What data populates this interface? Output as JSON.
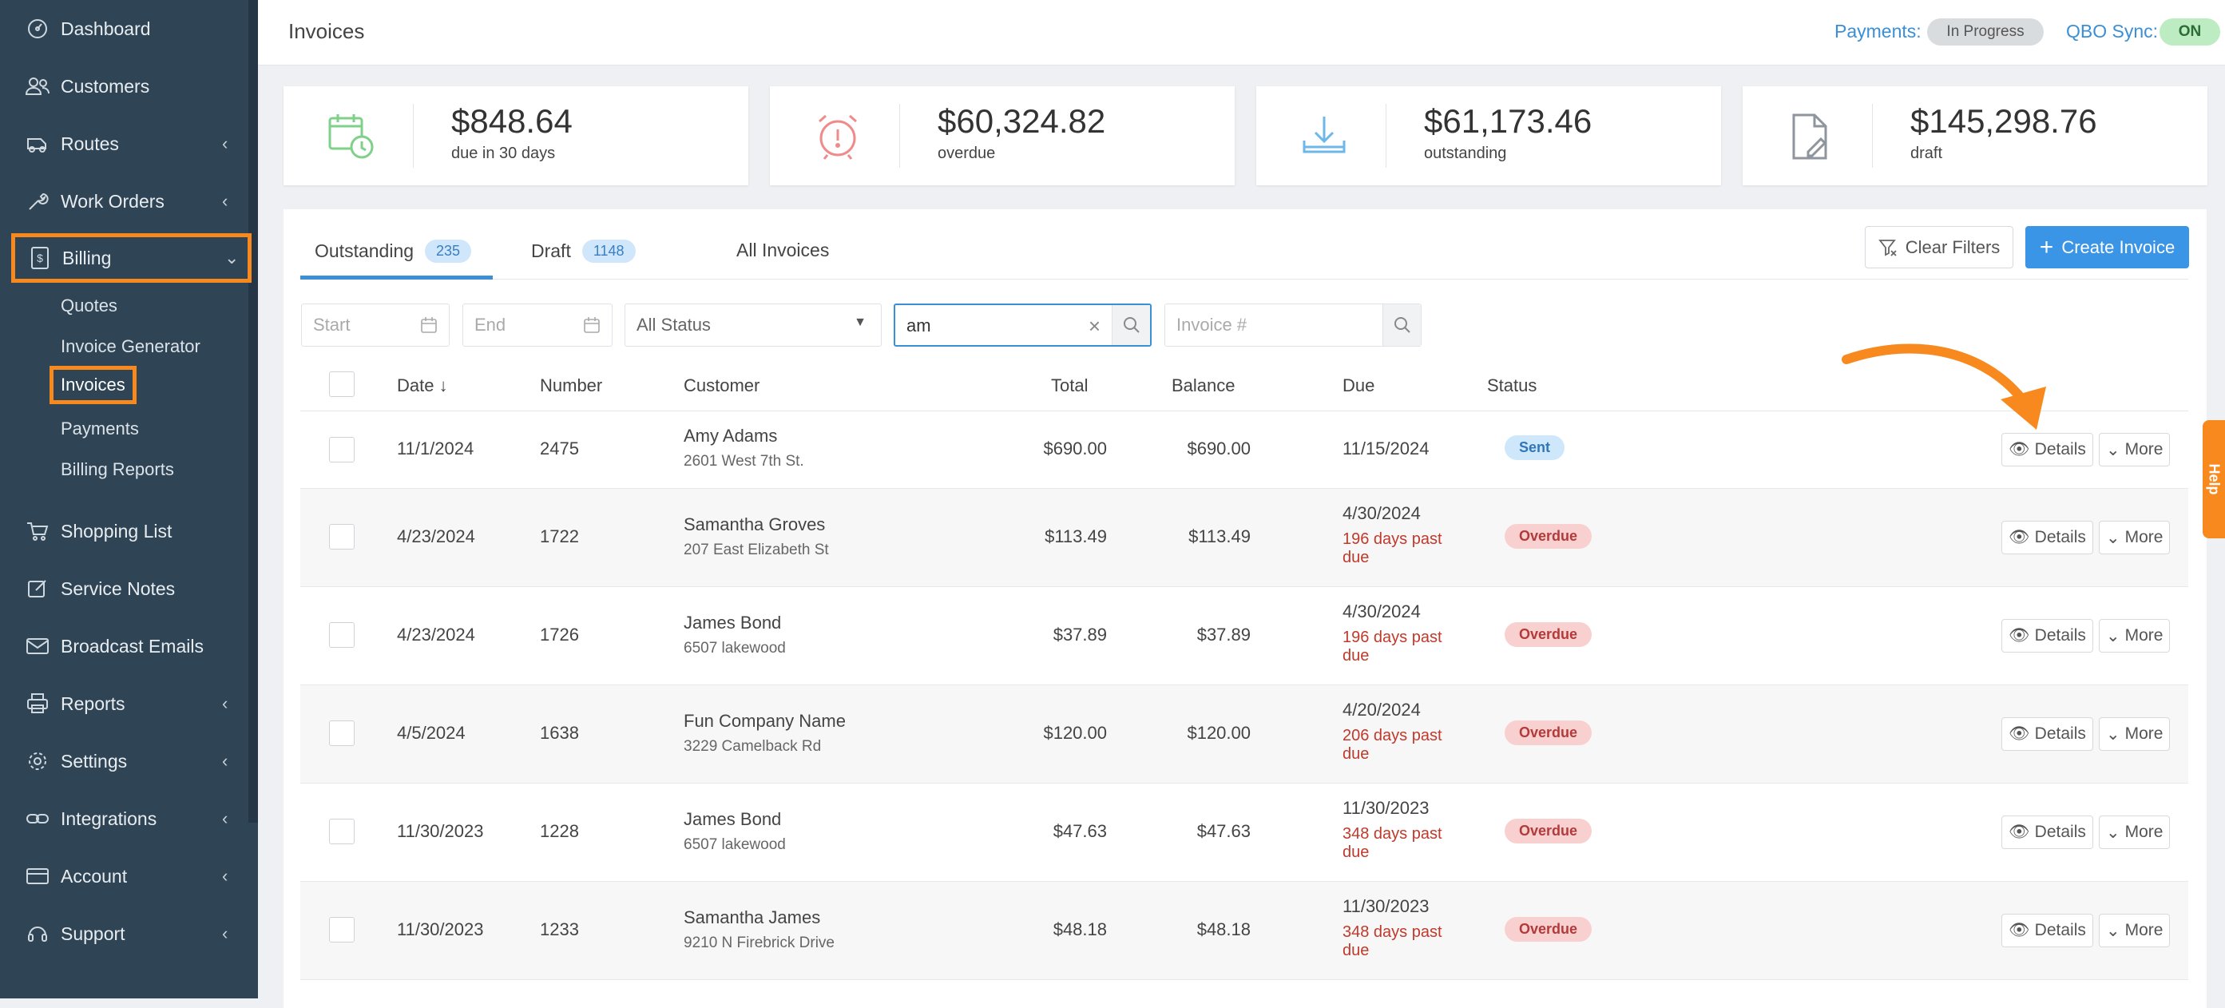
{
  "sidebar": {
    "items": [
      {
        "label": "Dashboard",
        "icon": "dashboard-icon"
      },
      {
        "label": "Customers",
        "icon": "customers-icon"
      },
      {
        "label": "Routes",
        "icon": "routes-icon"
      },
      {
        "label": "Work Orders",
        "icon": "wrench-icon"
      },
      {
        "label": "Billing",
        "icon": "billing-icon"
      },
      {
        "label": "Shopping List",
        "icon": "cart-icon"
      },
      {
        "label": "Service Notes",
        "icon": "edit-icon"
      },
      {
        "label": "Broadcast Emails",
        "icon": "mail-icon"
      },
      {
        "label": "Reports",
        "icon": "printer-icon"
      },
      {
        "label": "Settings",
        "icon": "gear-icon"
      },
      {
        "label": "Integrations",
        "icon": "link-icon"
      },
      {
        "label": "Account",
        "icon": "card-icon"
      },
      {
        "label": "Support",
        "icon": "support-icon"
      }
    ],
    "billing_sub": [
      "Quotes",
      "Invoice Generator",
      "Invoices",
      "Payments",
      "Billing Reports"
    ]
  },
  "header": {
    "title": "Invoices",
    "payments_label": "Payments:",
    "payments_status": "In Progress",
    "qbo_label": "QBO Sync:",
    "qbo_status": "ON"
  },
  "cards": [
    {
      "amount": "$848.64",
      "label": "due in 30 days",
      "color": "#7fd18a"
    },
    {
      "amount": "$60,324.82",
      "label": "overdue",
      "color": "#ef8b8b"
    },
    {
      "amount": "$61,173.46",
      "label": "outstanding",
      "color": "#6db8e8"
    },
    {
      "amount": "$145,298.76",
      "label": "draft",
      "color": "#8e959c"
    }
  ],
  "tabs": [
    {
      "label": "Outstanding",
      "count": "235"
    },
    {
      "label": "Draft",
      "count": "1148"
    },
    {
      "label": "All Invoices"
    }
  ],
  "buttons": {
    "clear": "Clear Filters",
    "create": "Create Invoice",
    "details": "Details",
    "more": "More"
  },
  "filters": {
    "start_placeholder": "Start",
    "end_placeholder": "End",
    "status_value": "All Status",
    "search_value": "am",
    "invoice_placeholder": "Invoice #"
  },
  "table": {
    "headers": {
      "date": "Date ↓",
      "number": "Number",
      "customer": "Customer",
      "total": "Total",
      "balance": "Balance",
      "due": "Due",
      "status": "Status"
    },
    "rows": [
      {
        "date": "11/1/2024",
        "number": "2475",
        "customer": "Amy Adams",
        "address": "2601 West 7th St.",
        "total": "$690.00",
        "balance": "$690.00",
        "due": "11/15/2024",
        "late": "",
        "status": "Sent"
      },
      {
        "date": "4/23/2024",
        "number": "1722",
        "customer": "Samantha Groves",
        "address": "207 East Elizabeth St",
        "total": "$113.49",
        "balance": "$113.49",
        "due": "4/30/2024",
        "late": "196 days past due",
        "status": "Overdue"
      },
      {
        "date": "4/23/2024",
        "number": "1726",
        "customer": "James Bond",
        "address": "6507 lakewood",
        "total": "$37.89",
        "balance": "$37.89",
        "due": "4/30/2024",
        "late": "196 days past due",
        "status": "Overdue"
      },
      {
        "date": "4/5/2024",
        "number": "1638",
        "customer": "Fun Company Name",
        "address": "3229 Camelback Rd",
        "total": "$120.00",
        "balance": "$120.00",
        "due": "4/20/2024",
        "late": "206 days past due",
        "status": "Overdue"
      },
      {
        "date": "11/30/2023",
        "number": "1228",
        "customer": "James Bond",
        "address": "6507 lakewood",
        "total": "$47.63",
        "balance": "$47.63",
        "due": "11/30/2023",
        "late": "348 days past due",
        "status": "Overdue"
      },
      {
        "date": "11/30/2023",
        "number": "1233",
        "customer": "Samantha James",
        "address": "9210 N Firebrick Drive",
        "total": "$48.18",
        "balance": "$48.18",
        "due": "11/30/2023",
        "late": "348 days past due",
        "status": "Overdue"
      }
    ]
  },
  "help_label": "Help"
}
